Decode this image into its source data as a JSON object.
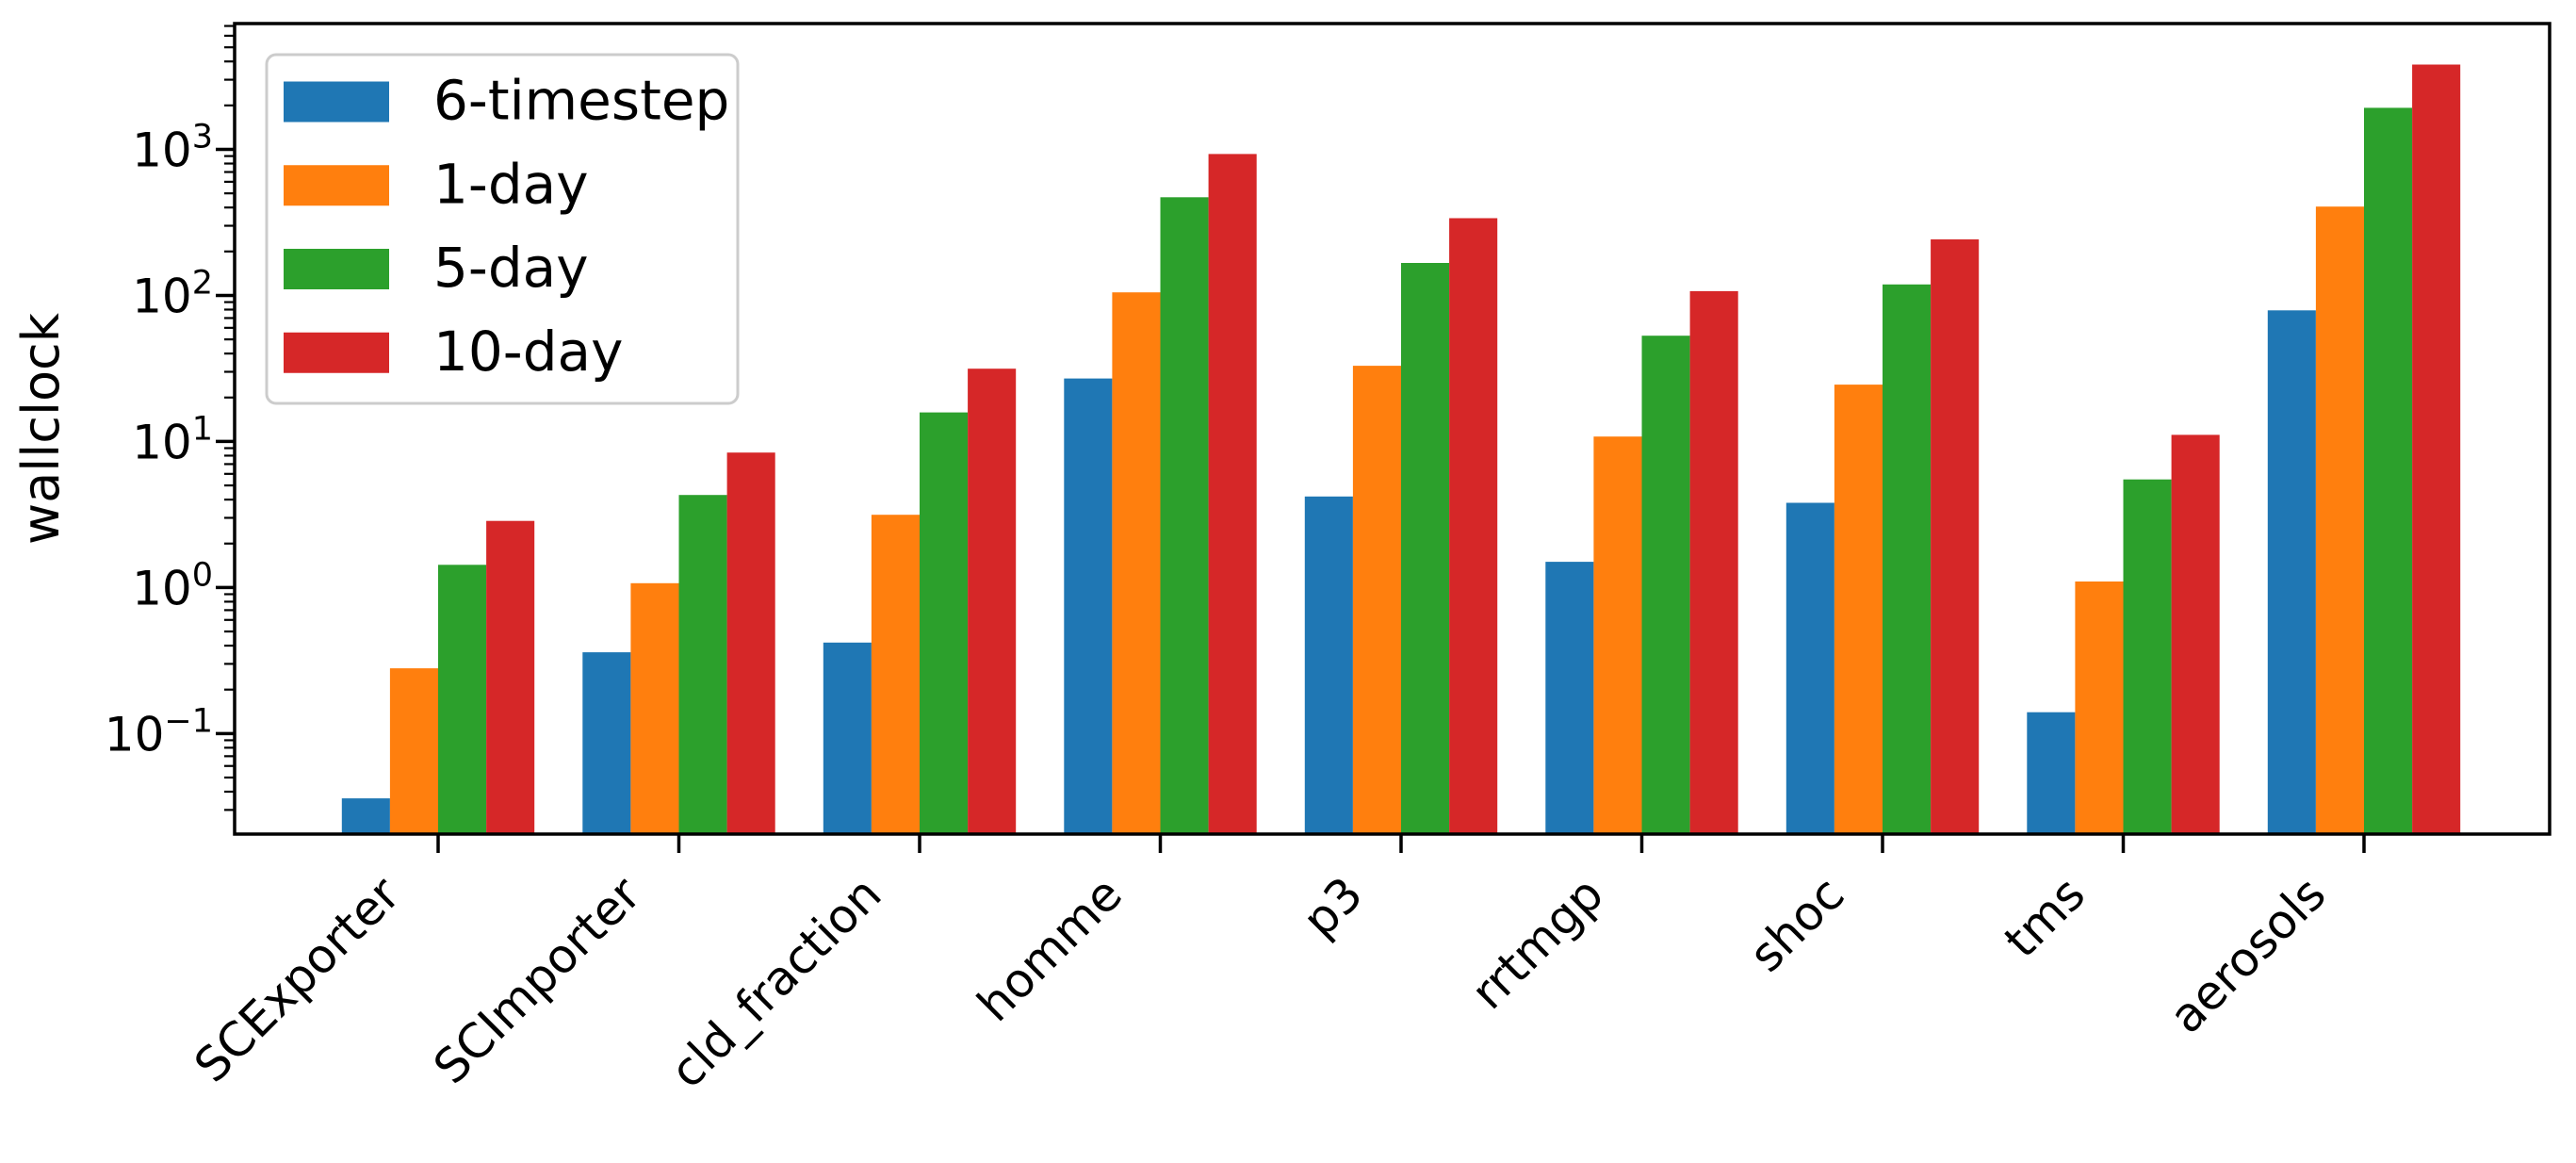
{
  "figure": {
    "background": "#ffffff"
  },
  "chart_data": {
    "type": "bar",
    "title": "",
    "xlabel": "",
    "ylabel": "wallclock",
    "yscale": "log",
    "ylim": [
      0.0205,
      7270
    ],
    "grid": false,
    "legend_position": "upper left",
    "y_major_tick_exponents": [
      -1,
      0,
      1,
      2,
      3
    ],
    "y_tick_base": "10",
    "categories": [
      "SCExporter",
      "SCImporter",
      "cld_fraction",
      "homme",
      "p3",
      "rrtmgp",
      "shoc",
      "tms",
      "aerosols"
    ],
    "series": [
      {
        "name": "6-timestep",
        "color": "#1f77b4",
        "values": [
          0.036,
          0.36,
          0.42,
          27,
          4.2,
          1.5,
          3.8,
          0.14,
          79
        ]
      },
      {
        "name": "1-day",
        "color": "#ff7f0e",
        "values": [
          0.28,
          1.07,
          3.15,
          105,
          33,
          10.8,
          24.5,
          1.1,
          406
        ]
      },
      {
        "name": "5-day",
        "color": "#2ca02c",
        "values": [
          1.43,
          4.3,
          15.8,
          470,
          167,
          53,
          119,
          5.5,
          1925
        ]
      },
      {
        "name": "10-day",
        "color": "#d62728",
        "values": [
          2.86,
          8.4,
          31.5,
          930,
          338,
          107,
          242,
          11.1,
          3810
        ]
      }
    ]
  }
}
